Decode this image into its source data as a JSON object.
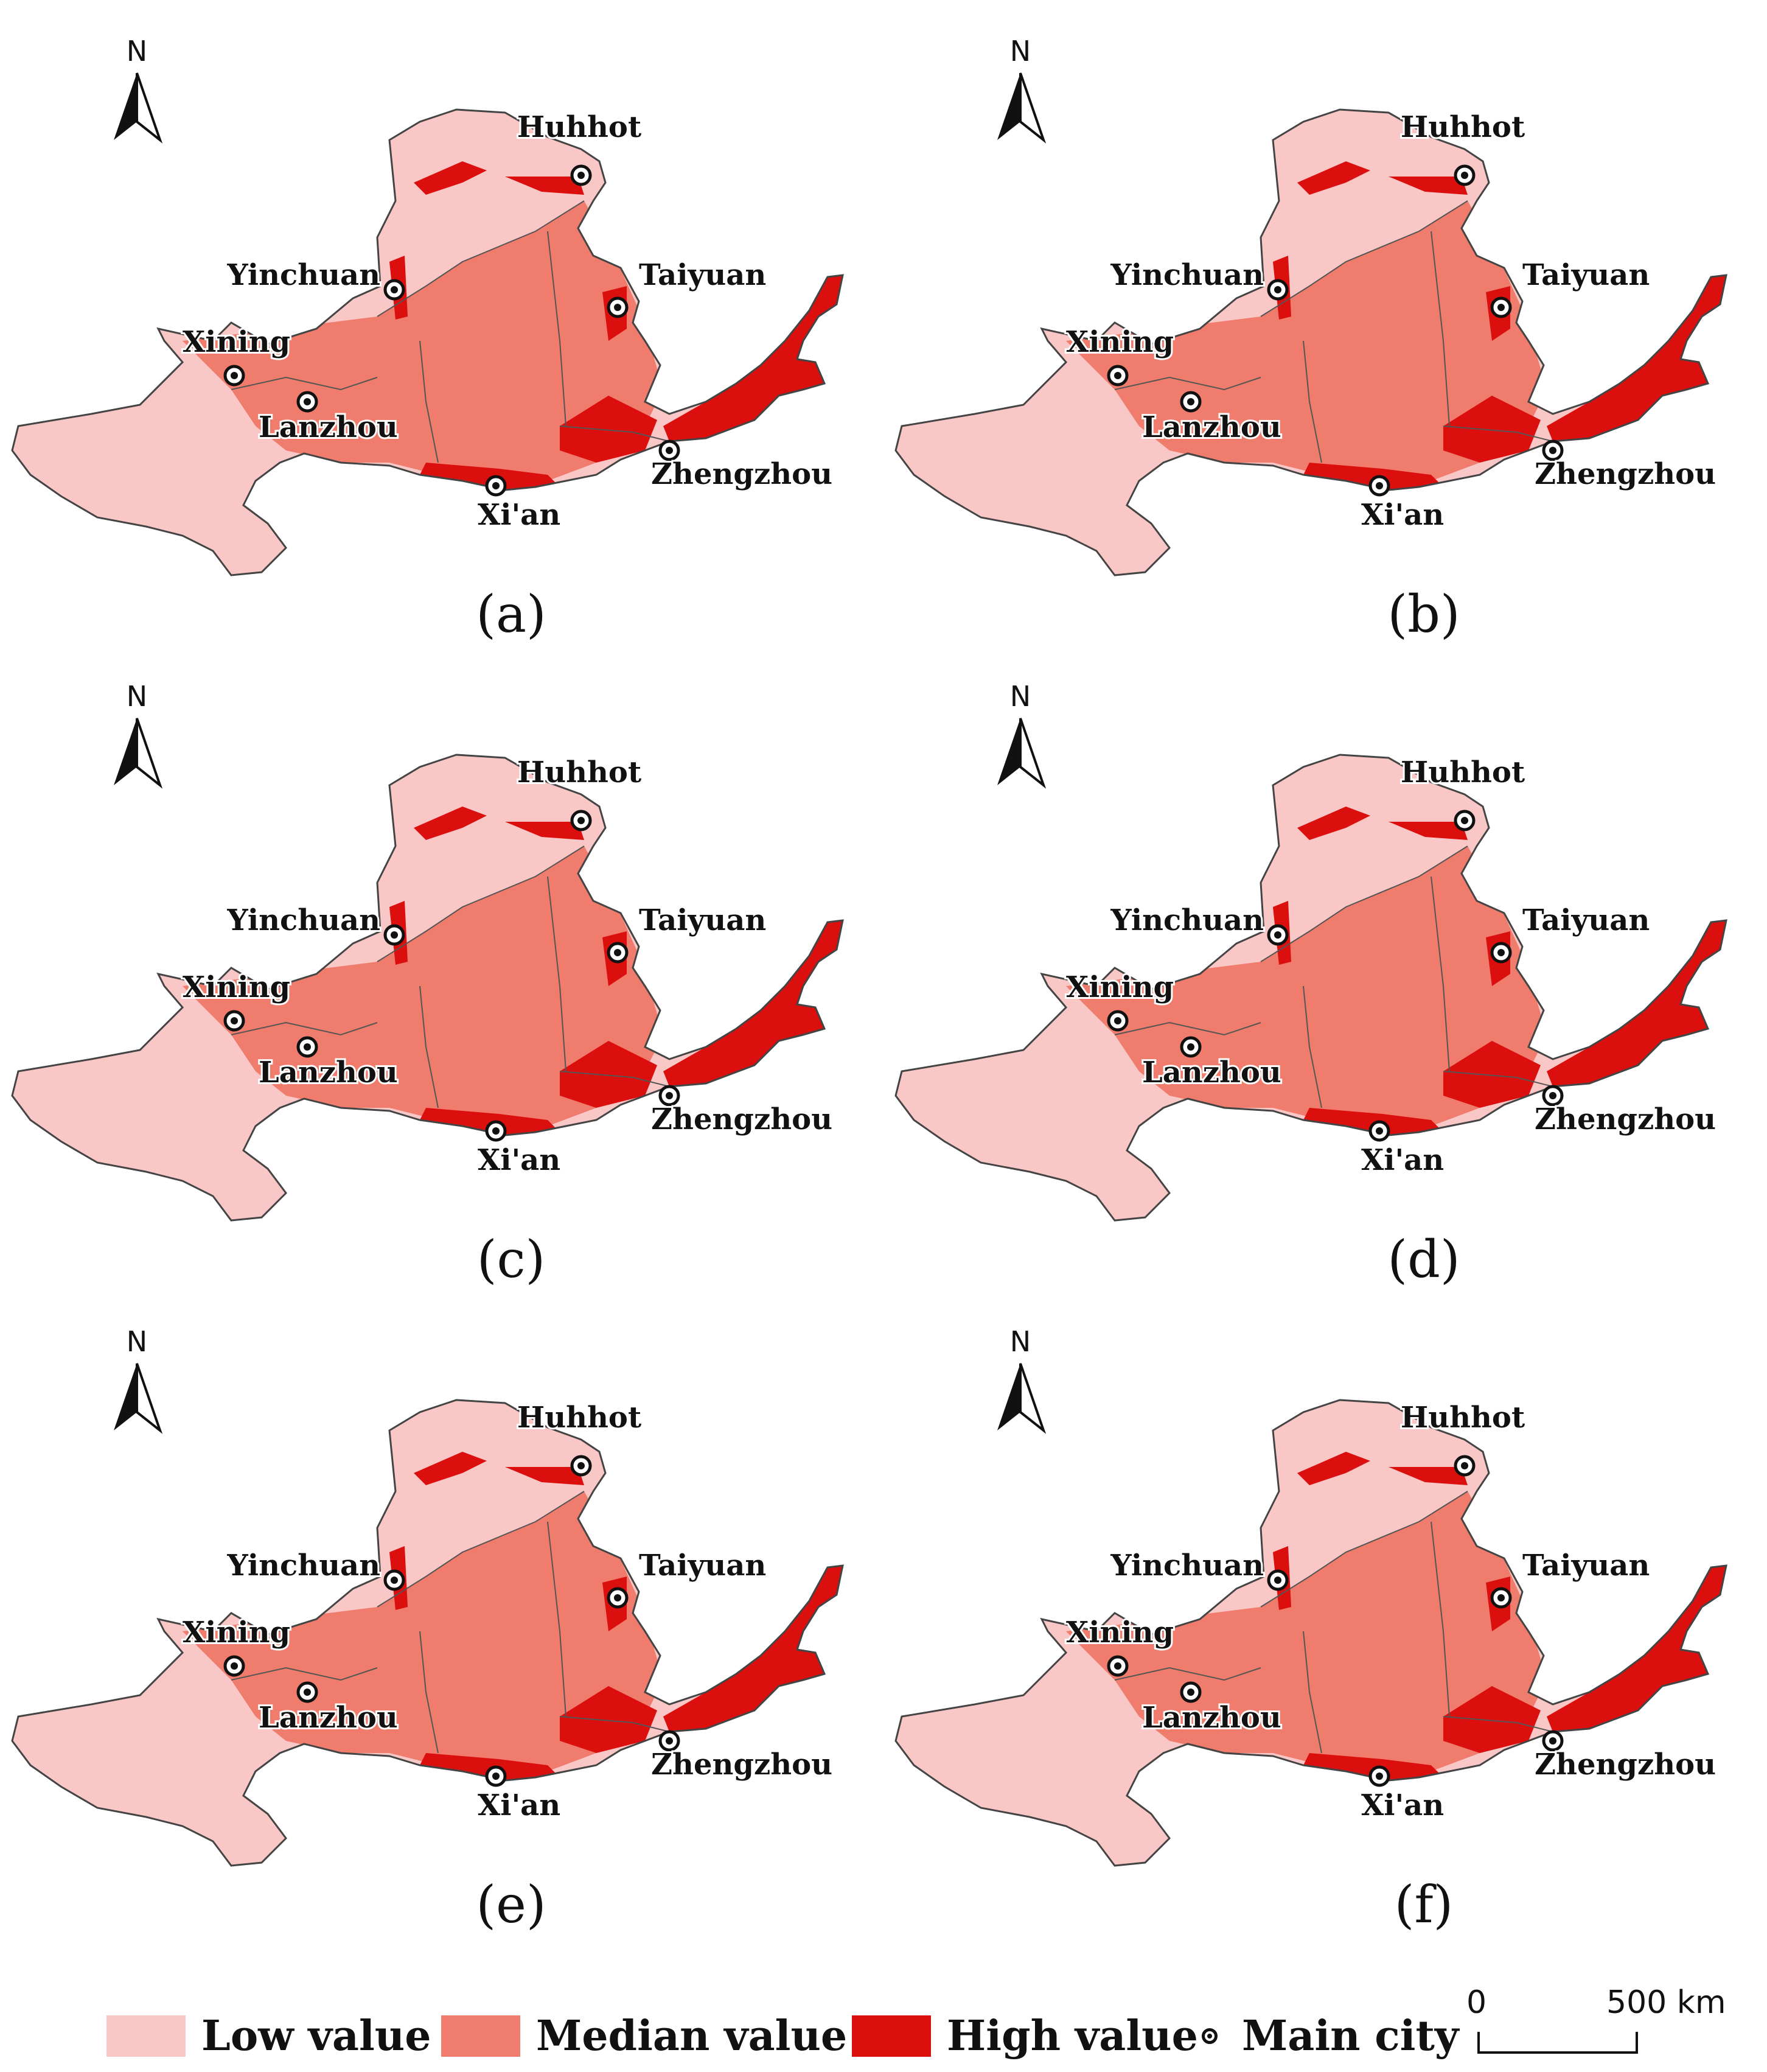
{
  "panels": [
    {
      "label": "(a)"
    },
    {
      "label": "(b)"
    },
    {
      "label": "(c)"
    },
    {
      "label": "(d)"
    },
    {
      "label": "(e)"
    },
    {
      "label": "(f)"
    }
  ],
  "north_arrow": {
    "label": "N"
  },
  "cities": [
    {
      "key": "huhhot",
      "name": "Huhhot"
    },
    {
      "key": "yinchuan",
      "name": "Yinchuan"
    },
    {
      "key": "taiyuan",
      "name": "Taiyuan"
    },
    {
      "key": "xining",
      "name": "Xining"
    },
    {
      "key": "lanzhou",
      "name": "Lanzhou"
    },
    {
      "key": "xian",
      "name": "Xi'an"
    },
    {
      "key": "zhengzhou",
      "name": "Zhengzhou"
    }
  ],
  "legend": {
    "low": {
      "label": "Low value",
      "color": "#f9c7c6"
    },
    "median": {
      "label": "Median value",
      "color": "#ef7c6c"
    },
    "high": {
      "label": "High value",
      "color": "#dc0f0f"
    },
    "city": {
      "label": "Main city"
    }
  },
  "scale_bar": {
    "start": "0",
    "end": "500 km"
  }
}
